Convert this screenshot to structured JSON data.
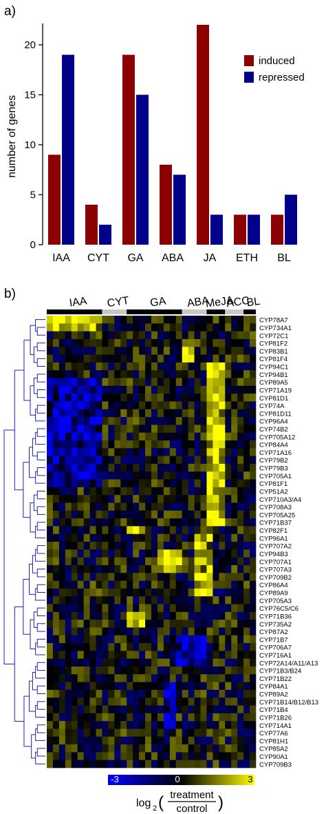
{
  "panel_a_label": "a)",
  "panel_b_label": "b)",
  "chart_data": [
    {
      "type": "bar",
      "categories": [
        "IAA",
        "CYT",
        "GA",
        "ABA",
        "JA",
        "ETH",
        "BL"
      ],
      "series": [
        {
          "name": "induced",
          "values": [
            9,
            4,
            19,
            8,
            22,
            3,
            3
          ],
          "color": "#8b0000"
        },
        {
          "name": "repressed",
          "values": [
            19,
            2,
            15,
            7,
            3,
            3,
            5
          ],
          "color": "#00008b"
        }
      ],
      "ylabel": "number of genes",
      "xlabel": "",
      "ylim": [
        0,
        22
      ],
      "yticks": [
        0,
        5,
        10,
        15,
        20
      ],
      "legend": "top-right",
      "grid": false
    },
    {
      "type": "heatmap",
      "column_groups": [
        {
          "label": "IAA",
          "columns": 9,
          "bar_color": "#000000"
        },
        {
          "label": "CYT",
          "columns": 4,
          "bar_color": "#c8c8c8"
        },
        {
          "label": "GA",
          "columns": 9,
          "bar_color": "#000000"
        },
        {
          "label": "ABA",
          "columns": 4,
          "bar_color": "#c8c8c8"
        },
        {
          "label": "MeJA",
          "columns": 3,
          "bar_color": "#000000"
        },
        {
          "label": "ACC",
          "columns": 3,
          "bar_color": "#c8c8c8"
        },
        {
          "label": "BL",
          "columns": 2,
          "bar_color": "#000000"
        }
      ],
      "rows": [
        "CYP78A7",
        "CYP734A1",
        "CYP72C1",
        "CYP81F2",
        "CYP83B1",
        "CYP81F4",
        "CYP94C1",
        "CYP94B1",
        "CYP89A5",
        "CYP71A19",
        "CYP81D1",
        "CYP74A",
        "CYP81D11",
        "CYP96A4",
        "CYP74B2",
        "CYP705A12",
        "CYP84A4",
        "CYP71A16",
        "CYP79B2",
        "CYP79B3",
        "CYP705A1",
        "CYP81F1",
        "CYP51A2",
        "CYP710A3/A4",
        "CYP708A3",
        "CYP705A25",
        "CYP71B37",
        "CYP82F1",
        "CYP96A1",
        "CYP707A2",
        "CYP94B3",
        "CYP707A1",
        "CYP707A3",
        "CYP709B2",
        "CYP86A4",
        "CYP89A9",
        "CYP705A3",
        "CYP76C5/C6",
        "CYP71B36",
        "CYP735A2",
        "CYP87A2",
        "CYP71B7",
        "CYP706A7",
        "CYP716A1",
        "CYP72A14/A11/A13",
        "CYP71B3/B24",
        "CYP71B22",
        "CYP84A1",
        "CYP89A2",
        "CYP71B14/B12/B13",
        "CYP71B4",
        "CYP71B26",
        "CYP714A1",
        "CYP77A6",
        "CYP81H1",
        "CYP85A2",
        "CYP90A1",
        "CYP709B3"
      ],
      "colorbar": {
        "min": -3,
        "max": 3,
        "ticks": [
          "-3",
          "0",
          "3"
        ],
        "colors": [
          "#0000ff",
          "#000000",
          "#ffff00"
        ]
      },
      "colorbar_label": {
        "prefix": "log",
        "sub": "2",
        "open": "(",
        "numerator": "treatment",
        "denominator": "control",
        "close": ")"
      }
    }
  ]
}
